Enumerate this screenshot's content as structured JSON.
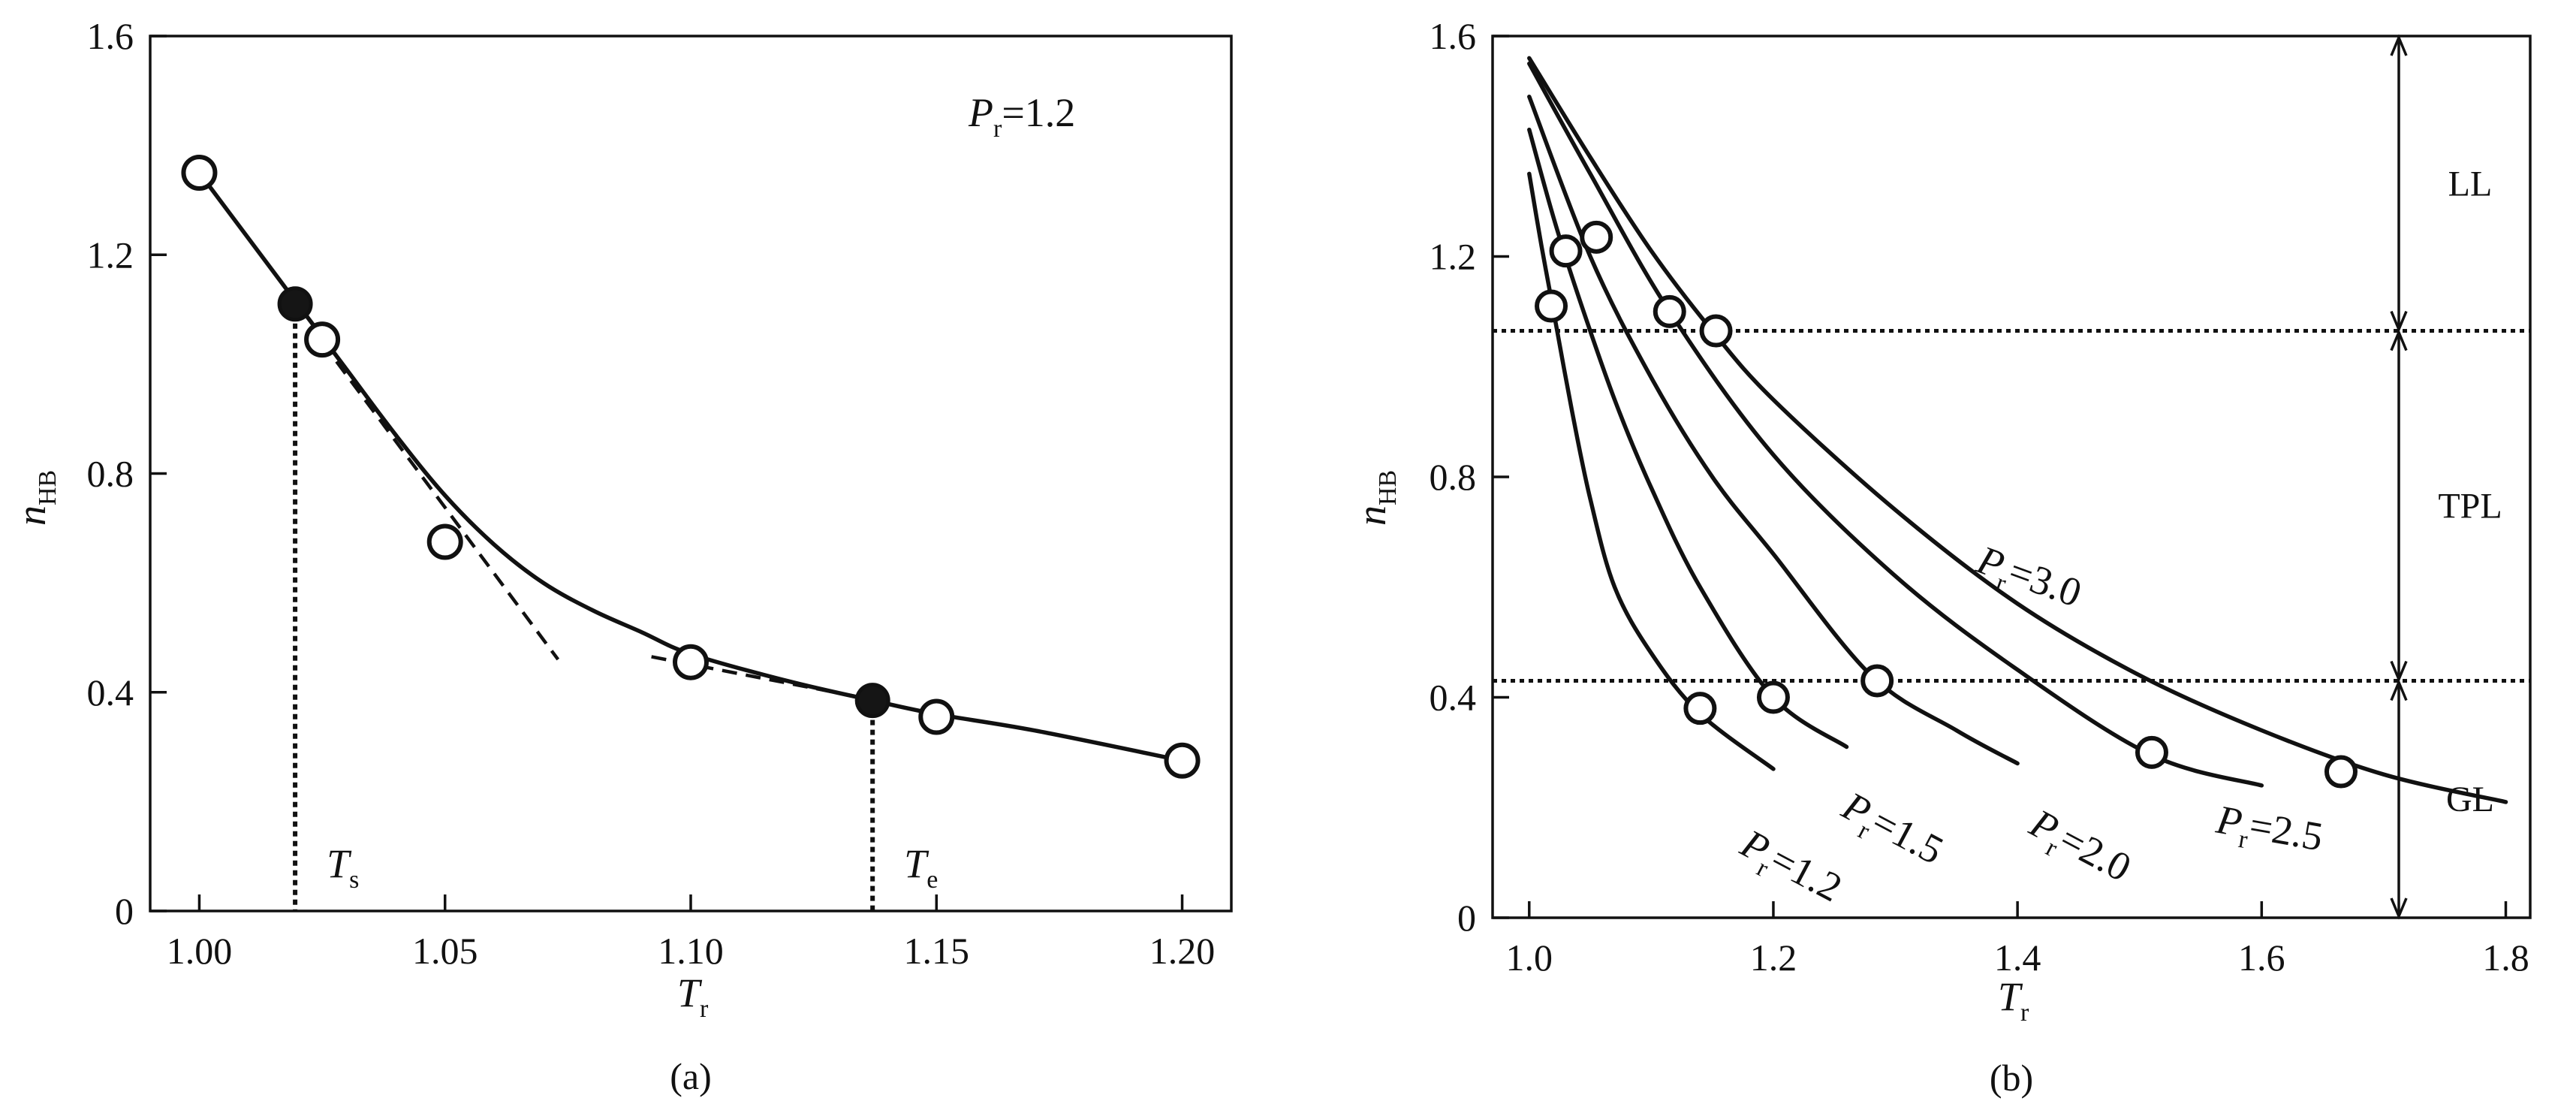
{
  "chart_data": [
    {
      "panel_label": "(a)",
      "type": "line",
      "xlabel": {
        "main": "T",
        "sub": "r"
      },
      "ylabel": {
        "main": "n",
        "sub": "HB"
      },
      "xlim": [
        0.99,
        1.21
      ],
      "ylim": [
        0,
        1.6
      ],
      "xticks": [
        "1.00",
        "1.05",
        "1.10",
        "1.15",
        "1.20"
      ],
      "xtick_values": [
        1.0,
        1.05,
        1.1,
        1.15,
        1.2
      ],
      "yticks": [
        "0",
        "0.4",
        "0.8",
        "1.2",
        "1.6"
      ],
      "ytick_values": [
        0,
        0.4,
        0.8,
        1.2,
        1.6
      ],
      "annotation": {
        "main": "P",
        "sub": "r",
        "rest": "=1.2"
      },
      "curve": {
        "x": [
          1.0,
          1.01,
          1.02,
          1.03,
          1.04,
          1.05,
          1.06,
          1.07,
          1.08,
          1.09,
          1.1,
          1.12,
          1.137,
          1.15,
          1.17,
          1.2
        ],
        "y": [
          1.35,
          1.23,
          1.11,
          0.99,
          0.87,
          0.76,
          0.67,
          0.6,
          0.55,
          0.51,
          0.47,
          0.42,
          0.385,
          0.36,
          0.33,
          0.275
        ]
      },
      "open_markers": {
        "x": [
          1.0,
          1.025,
          1.05,
          1.1,
          1.15,
          1.2
        ],
        "y": [
          1.35,
          1.045,
          0.675,
          0.455,
          0.355,
          0.275
        ]
      },
      "filled_markers": {
        "x": [
          1.0195,
          1.137
        ],
        "y": [
          1.11,
          0.385
        ]
      },
      "tangent_lines": [
        {
          "x": [
            1.025,
            1.073
          ],
          "y": [
            1.04,
            0.46
          ]
        },
        {
          "x": [
            1.092,
            1.135
          ],
          "y": [
            0.465,
            0.39
          ]
        }
      ],
      "vertical_markers": [
        {
          "x": 1.0195,
          "y": 1.11,
          "label": {
            "main": "T",
            "sub": "s"
          }
        },
        {
          "x": 1.137,
          "y": 0.385,
          "label": {
            "main": "T",
            "sub": "e"
          }
        }
      ]
    },
    {
      "panel_label": "(b)",
      "type": "line",
      "xlabel": {
        "main": "T",
        "sub": "r"
      },
      "ylabel": {
        "main": "n",
        "sub": "HB"
      },
      "xlim": [
        0.97,
        1.82
      ],
      "ylim": [
        0,
        1.6
      ],
      "xticks": [
        "1.0",
        "1.2",
        "1.4",
        "1.6",
        "1.8"
      ],
      "xtick_values": [
        1.0,
        1.2,
        1.4,
        1.6,
        1.8
      ],
      "yticks": [
        "0",
        "0.4",
        "0.8",
        "1.2",
        "1.6"
      ],
      "ytick_values": [
        0,
        0.4,
        0.8,
        1.2,
        1.6
      ],
      "series": [
        {
          "label": {
            "main": "P",
            "sub": "r",
            "rest": "=1.2"
          },
          "x": [
            1.0,
            1.01,
            1.02,
            1.035,
            1.05,
            1.07,
            1.1,
            1.14,
            1.2
          ],
          "y": [
            1.35,
            1.22,
            1.1,
            0.92,
            0.76,
            0.6,
            0.48,
            0.37,
            0.27
          ],
          "marker_x": [
            1.018,
            1.14
          ],
          "marker_y": [
            1.11,
            0.38
          ]
        },
        {
          "label": {
            "main": "P",
            "sub": "r",
            "rest": "=1.5"
          },
          "x": [
            1.0,
            1.02,
            1.04,
            1.07,
            1.1,
            1.14,
            1.2,
            1.26
          ],
          "y": [
            1.43,
            1.27,
            1.13,
            0.94,
            0.78,
            0.6,
            0.4,
            0.31
          ],
          "marker_x": [
            1.03,
            1.2
          ],
          "marker_y": [
            1.21,
            0.4
          ]
        },
        {
          "label": {
            "main": "P",
            "sub": "r",
            "rest": "=2.0"
          },
          "x": [
            1.0,
            1.05,
            1.1,
            1.15,
            1.2,
            1.28,
            1.35,
            1.4
          ],
          "y": [
            1.49,
            1.2,
            0.98,
            0.8,
            0.66,
            0.44,
            0.34,
            0.28
          ],
          "marker_x": [
            1.055,
            1.285
          ],
          "marker_y": [
            1.235,
            0.43
          ]
        },
        {
          "label": {
            "main": "P",
            "sub": "r",
            "rest": "=2.5"
          },
          "x": [
            1.0,
            1.05,
            1.115,
            1.2,
            1.3,
            1.4,
            1.51,
            1.6
          ],
          "y": [
            1.55,
            1.35,
            1.1,
            0.84,
            0.62,
            0.45,
            0.295,
            0.24
          ],
          "marker_x": [
            1.115,
            1.51
          ],
          "marker_y": [
            1.1,
            0.3
          ]
        },
        {
          "label": {
            "main": "P",
            "sub": "r",
            "rest": "=3.0"
          },
          "x": [
            1.0,
            1.05,
            1.1,
            1.15,
            1.2,
            1.3,
            1.4,
            1.5,
            1.6,
            1.7,
            1.8
          ],
          "y": [
            1.56,
            1.38,
            1.21,
            1.065,
            0.94,
            0.74,
            0.57,
            0.44,
            0.34,
            0.26,
            0.21
          ],
          "marker_x": [
            1.153,
            1.665
          ],
          "marker_y": [
            1.065,
            0.265
          ]
        }
      ],
      "reference_lines_y": [
        1.065,
        0.43
      ],
      "regions": [
        {
          "label": "LL",
          "y_range": [
            1.065,
            1.6
          ]
        },
        {
          "label": "TPL",
          "y_range": [
            0.43,
            1.065
          ]
        },
        {
          "label": "GL",
          "y_range": [
            0,
            0.43
          ]
        }
      ]
    }
  ]
}
